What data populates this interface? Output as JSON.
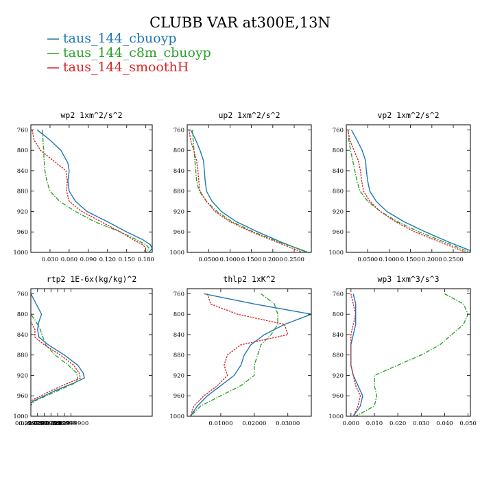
{
  "figure_title": "CLUBB VAR at300E,13N",
  "legend": [
    {
      "name": "taus_144_cbuoyp",
      "color": "#1f77b4",
      "dash": "solid"
    },
    {
      "name": "taus_144_c8m_cbuoyp",
      "color": "#2ca02c",
      "dash": "dashdot"
    },
    {
      "name": "taus_144_smoothH",
      "color": "#d62728",
      "dash": "dotted"
    }
  ],
  "chart_data": [
    {
      "type": "line",
      "title": "wp2  1xm^2/s^2",
      "xlim": [
        0,
        0.19
      ],
      "ylim": [
        1000,
        750
      ],
      "y_inverted": true,
      "xtick_labels": [
        [
          "0.030",
          0.03
        ],
        [
          "0.060",
          0.06
        ],
        [
          "0.090",
          0.09
        ],
        [
          "0.120",
          0.12
        ],
        [
          "0.150",
          0.15
        ],
        [
          "0.180",
          0.18
        ]
      ],
      "ytick_labels": [
        "760",
        "800",
        "840",
        "880",
        "920",
        "960",
        "1000"
      ],
      "ytick_values": [
        760,
        800,
        840,
        880,
        920,
        960,
        1000
      ],
      "y": [
        760,
        780,
        800,
        825,
        840,
        860,
        880,
        900,
        920,
        940,
        960,
        975,
        985,
        992,
        1000
      ],
      "series": [
        {
          "name": "taus_144_cbuoyp",
          "values": [
            0.01,
            0.03,
            0.047,
            0.058,
            0.06,
            0.058,
            0.06,
            0.07,
            0.088,
            0.12,
            0.15,
            0.175,
            0.187,
            0.19,
            0.185
          ]
        },
        {
          "name": "taus_144_c8m_cbuoyp",
          "values": [
            0.018,
            0.019,
            0.02,
            0.021,
            0.022,
            0.025,
            0.03,
            0.045,
            0.07,
            0.1,
            0.14,
            0.165,
            0.18,
            0.185,
            0.181
          ]
        },
        {
          "name": "taus_144_smoothH",
          "values": [
            0.002,
            0.005,
            0.015,
            0.04,
            0.055,
            0.057,
            0.056,
            0.06,
            0.08,
            0.11,
            0.14,
            0.16,
            0.175,
            0.18,
            0.177
          ]
        }
      ]
    },
    {
      "type": "line",
      "title": "up2  1xm^2/s^2",
      "xlim": [
        0,
        0.29
      ],
      "ylim": [
        1000,
        750
      ],
      "y_inverted": true,
      "xtick_labels": [
        [
          "0.0500",
          0.05
        ],
        [
          "0.1000",
          0.1
        ],
        [
          "0.1500",
          0.15
        ],
        [
          "0.2000",
          0.2
        ],
        [
          "0.2500",
          0.25
        ]
      ],
      "ytick_labels": [
        "760",
        "800",
        "840",
        "880",
        "920",
        "960",
        "1000"
      ],
      "ytick_values": [
        760,
        800,
        840,
        880,
        920,
        960,
        1000
      ],
      "y": [
        760,
        780,
        800,
        820,
        840,
        860,
        880,
        900,
        920,
        940,
        960,
        980,
        1000
      ],
      "series": [
        {
          "name": "taus_144_cbuoyp",
          "values": [
            0.008,
            0.02,
            0.03,
            0.038,
            0.04,
            0.042,
            0.045,
            0.058,
            0.08,
            0.115,
            0.165,
            0.22,
            0.28
          ]
        },
        {
          "name": "taus_144_c8m_cbuoyp",
          "values": [
            0.012,
            0.014,
            0.016,
            0.018,
            0.02,
            0.022,
            0.028,
            0.045,
            0.07,
            0.105,
            0.155,
            0.215,
            0.285
          ]
        },
        {
          "name": "taus_144_smoothH",
          "values": [
            0.004,
            0.008,
            0.015,
            0.022,
            0.025,
            0.027,
            0.03,
            0.045,
            0.065,
            0.1,
            0.15,
            0.21,
            0.27
          ]
        }
      ]
    },
    {
      "type": "line",
      "title": "vp2  1xm^2/s^2",
      "xlim": [
        0,
        0.29
      ],
      "ylim": [
        1000,
        750
      ],
      "y_inverted": true,
      "xtick_labels": [
        [
          "0.0500",
          0.05
        ],
        [
          "0.1000",
          0.1
        ],
        [
          "0.1500",
          0.15
        ],
        [
          "0.2000",
          0.2
        ],
        [
          "0.2500",
          0.25
        ]
      ],
      "ytick_labels": [
        "760",
        "800",
        "840",
        "880",
        "920",
        "960",
        "1000"
      ],
      "ytick_values": [
        760,
        800,
        840,
        880,
        920,
        960,
        1000
      ],
      "y": [
        760,
        780,
        800,
        820,
        840,
        860,
        880,
        900,
        920,
        940,
        960,
        980,
        1000
      ],
      "series": [
        {
          "name": "taus_144_cbuoyp",
          "values": [
            0.012,
            0.025,
            0.037,
            0.045,
            0.047,
            0.05,
            0.055,
            0.07,
            0.095,
            0.135,
            0.185,
            0.24,
            0.3
          ]
        },
        {
          "name": "taus_144_c8m_cbuoyp",
          "values": [
            0.004,
            0.006,
            0.01,
            0.015,
            0.02,
            0.025,
            0.032,
            0.05,
            0.08,
            0.12,
            0.17,
            0.23,
            0.29
          ]
        },
        {
          "name": "taus_144_smoothH",
          "values": [
            0.004,
            0.008,
            0.018,
            0.028,
            0.033,
            0.036,
            0.04,
            0.055,
            0.08,
            0.115,
            0.16,
            0.22,
            0.28
          ]
        }
      ]
    },
    {
      "type": "line",
      "title": "rtp2  1E-6x(kg/kg)^2",
      "xlim": [
        0.02999,
        0.02999906
      ],
      "ylim": [
        1000,
        750
      ],
      "y_inverted": true,
      "xtick_labels": [
        [
          "0.02999",
          0.02999
        ],
        [
          "0.0299900",
          0.02999
        ],
        [
          "0.0299",
          0.0299905
        ],
        [
          "0.0299900",
          0.029991
        ],
        [
          "0.0299",
          0.0299915
        ],
        [
          "0.02999",
          0.029992
        ],
        [
          "0.02999",
          0.0299925
        ],
        [
          "0.02999900",
          0.029993
        ]
      ],
      "ytick_labels": [
        "760",
        "800",
        "840",
        "880",
        "920",
        "960",
        "1000"
      ],
      "ytick_values": [
        760,
        800,
        840,
        880,
        920,
        960,
        1000
      ],
      "y": [
        760,
        780,
        800,
        815,
        830,
        845,
        860,
        880,
        900,
        915,
        925,
        935,
        950,
        970,
        990,
        1000
      ],
      "series": [
        {
          "name": "taus_144_cbuoyp",
          "values": [
            0.02999,
            0.0299904,
            0.0299908,
            0.0299906,
            0.0299905,
            0.0299906,
            0.0299913,
            0.0299925,
            0.0299935,
            0.0299939,
            0.029994,
            0.0299932,
            0.0299918,
            0.0299902,
            0.0299893,
            0.0299891
          ]
        },
        {
          "name": "taus_144_c8m_cbuoyp",
          "values": [
            0.0299893,
            0.0299897,
            0.02999,
            0.0299904,
            0.0299907,
            0.0299909,
            0.0299911,
            0.0299918,
            0.0299928,
            0.0299934,
            0.0299935,
            0.0299933,
            0.029992,
            0.0299903,
            0.0299896,
            0.0299893
          ]
        },
        {
          "name": "taus_144_smoothH",
          "values": [
            0.0299888,
            0.029989,
            0.0299893,
            0.02999,
            0.0299903,
            0.0299903,
            0.029991,
            0.0299922,
            0.0299932,
            0.0299936,
            0.0299937,
            0.0299928,
            0.0299915,
            0.02999,
            0.0299892,
            0.0299891
          ]
        }
      ]
    },
    {
      "type": "line",
      "title": "thlp2  1xK^2",
      "xlim": [
        0,
        0.037
      ],
      "ylim": [
        1000,
        750
      ],
      "y_inverted": true,
      "xtick_labels": [
        [
          "0.01000",
          0.01
        ],
        [
          "0.02000",
          0.02
        ],
        [
          "0.03000",
          0.03
        ]
      ],
      "ytick_labels": [
        "760",
        "800",
        "840",
        "880",
        "920",
        "960",
        "1000"
      ],
      "ytick_values": [
        760,
        800,
        840,
        880,
        920,
        960,
        1000
      ],
      "y": [
        760,
        780,
        800,
        820,
        840,
        860,
        880,
        900,
        920,
        940,
        960,
        980,
        1000
      ],
      "series": [
        {
          "name": "taus_144_cbuoyp",
          "values": [
            0.005,
            0.02,
            0.037,
            0.029,
            0.023,
            0.019,
            0.017,
            0.016,
            0.014,
            0.01,
            0.006,
            0.003,
            0.001
          ]
        },
        {
          "name": "taus_144_c8m_cbuoyp",
          "values": [
            0.022,
            0.026,
            0.027,
            0.027,
            0.025,
            0.022,
            0.021,
            0.02,
            0.02,
            0.016,
            0.01,
            0.004,
            0.001
          ]
        },
        {
          "name": "taus_144_smoothH",
          "values": [
            0.006,
            0.007,
            0.015,
            0.029,
            0.03,
            0.016,
            0.012,
            0.011,
            0.012,
            0.009,
            0.005,
            0.002,
            0.001
          ]
        }
      ]
    },
    {
      "type": "line",
      "title": "wp3  1xm^3/s^3",
      "xlim": [
        -0.002,
        0.051
      ],
      "ylim": [
        1000,
        750
      ],
      "y_inverted": true,
      "xtick_labels": [
        [
          "0.000",
          0.0
        ],
        [
          "0.010",
          0.01
        ],
        [
          "0.020",
          0.02
        ],
        [
          "0.030",
          0.03
        ],
        [
          "0.040",
          0.04
        ],
        [
          "0.050",
          0.05
        ]
      ],
      "ytick_labels": [
        "760",
        "800",
        "840",
        "880",
        "920",
        "960",
        "1000"
      ],
      "ytick_values": [
        760,
        800,
        840,
        880,
        920,
        960,
        1000
      ],
      "y": [
        760,
        780,
        800,
        820,
        840,
        860,
        880,
        900,
        920,
        940,
        960,
        980,
        1000
      ],
      "series": [
        {
          "name": "taus_144_cbuoyp",
          "values": [
            0.001,
            0.002,
            0.002,
            0.002,
            0.001,
            0.0,
            0.0,
            0.0,
            0.001,
            0.003,
            0.005,
            0.004,
            0.001
          ]
        },
        {
          "name": "taus_144_c8m_cbuoyp",
          "values": [
            0.04,
            0.048,
            0.05,
            0.048,
            0.043,
            0.038,
            0.03,
            0.02,
            0.01,
            0.01,
            0.011,
            0.01,
            0.002
          ]
        },
        {
          "name": "taus_144_smoothH",
          "values": [
            0.0,
            0.001,
            0.002,
            0.001,
            0.0,
            0.0,
            0.0,
            0.0,
            0.001,
            0.002,
            0.004,
            0.003,
            0.001
          ]
        }
      ]
    }
  ]
}
